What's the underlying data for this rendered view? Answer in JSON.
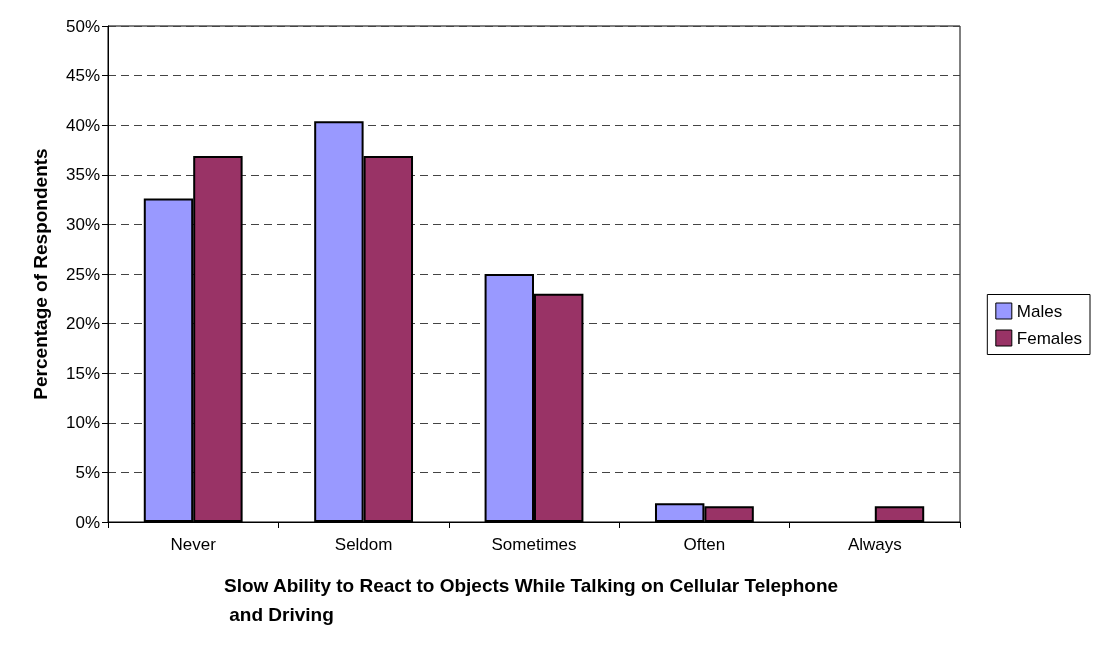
{
  "chart_data": {
    "type": "bar",
    "xlabel": "Slow Ability to React to Objects While Talking on Cellular Telephone and Driving",
    "ylabel": "Percentage of Respondents",
    "categories": [
      "Never",
      "Seldom",
      "Sometimes",
      "Often",
      "Always"
    ],
    "series": [
      {
        "name": "Males",
        "color": "#9999ff",
        "values": [
          32.6,
          40.4,
          25.0,
          1.9,
          0
        ]
      },
      {
        "name": "Females",
        "color": "#993366",
        "values": [
          36.9,
          36.9,
          23.0,
          1.6,
          1.6
        ]
      }
    ],
    "ylim": [
      0,
      50
    ],
    "yticks": [
      {
        "value": 0,
        "label": "0%"
      },
      {
        "value": 5,
        "label": "5%"
      },
      {
        "value": 10,
        "label": "10%"
      },
      {
        "value": 15,
        "label": "15%"
      },
      {
        "value": 20,
        "label": "20%"
      },
      {
        "value": 25,
        "label": "25%"
      },
      {
        "value": 30,
        "label": "30%"
      },
      {
        "value": 35,
        "label": "35%"
      },
      {
        "value": 40,
        "label": "40%"
      },
      {
        "value": 45,
        "label": "45%"
      },
      {
        "value": 50,
        "label": "50%"
      }
    ],
    "grid": "y",
    "legend": "right"
  }
}
